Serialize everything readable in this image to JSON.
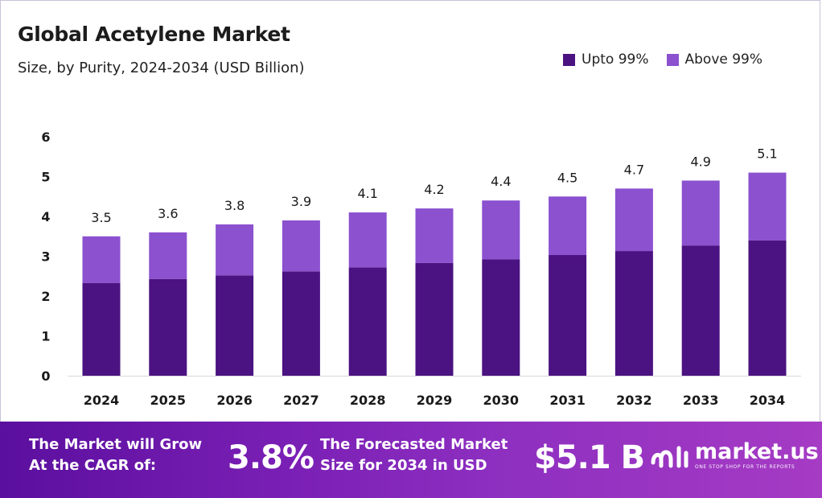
{
  "header": {
    "title": "Global Acetylene Market",
    "subtitle": "Size, by Purity, 2024-2034 (USD Billion)"
  },
  "legend": [
    {
      "label": "Upto 99%",
      "color": "#4b1281"
    },
    {
      "label": "Above 99%",
      "color": "#8b51cf"
    }
  ],
  "chart_data": {
    "type": "bar",
    "stacked": true,
    "categories": [
      "2024",
      "2025",
      "2026",
      "2027",
      "2028",
      "2029",
      "2030",
      "2031",
      "2032",
      "2033",
      "2034"
    ],
    "series": [
      {
        "name": "Upto 99%",
        "color": "#4b1281",
        "values": [
          2.33,
          2.43,
          2.52,
          2.62,
          2.72,
          2.83,
          2.92,
          3.03,
          3.13,
          3.27,
          3.4
        ]
      },
      {
        "name": "Above 99%",
        "color": "#8b51cf",
        "values": [
          1.17,
          1.17,
          1.28,
          1.28,
          1.38,
          1.37,
          1.48,
          1.47,
          1.57,
          1.63,
          1.7
        ]
      }
    ],
    "totals": [
      "3.5",
      "3.6",
      "3.8",
      "3.9",
      "4.1",
      "4.2",
      "4.4",
      "4.5",
      "4.7",
      "4.9",
      "5.1"
    ],
    "yticks": [
      "0",
      "1",
      "2",
      "3",
      "4",
      "5",
      "6"
    ],
    "ylim": [
      0,
      6
    ],
    "grid": false,
    "legend_position": "top-right"
  },
  "footer": {
    "cagr_text": "The Market will Grow At the CAGR of:",
    "cagr_value": "3.8%",
    "forecast_text": "The Forecasted Market Size for 2034 in USD",
    "forecast_value": "$5.1 B",
    "brand_name": "market.us",
    "brand_tagline": "ONE STOP SHOP FOR THE REPORTS"
  }
}
